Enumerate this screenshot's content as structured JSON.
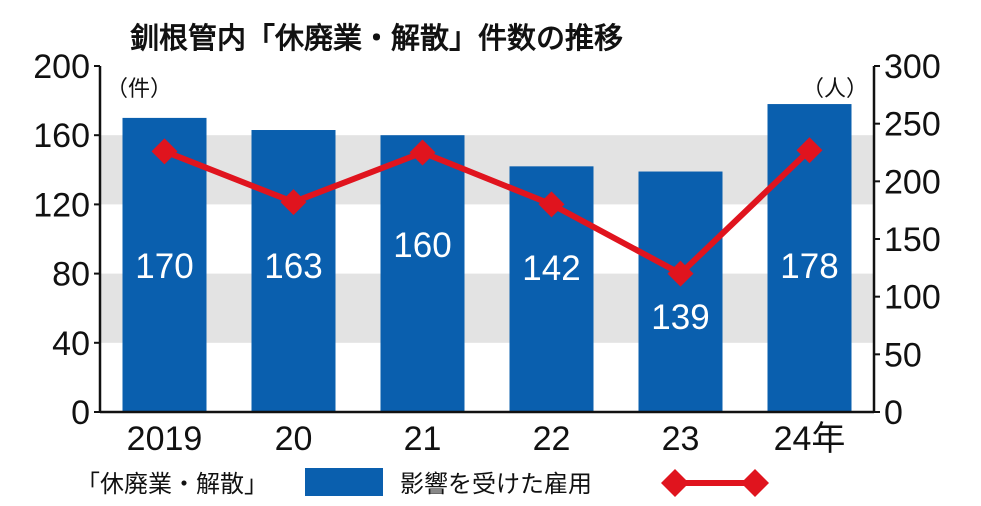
{
  "chart_data": {
    "type": "bar",
    "title": "釧根管内「休廃業・解散」件数の推移",
    "categories": [
      "2019",
      "20",
      "21",
      "22",
      "23",
      "24年"
    ],
    "series": [
      {
        "name": "「休廃業・解散」",
        "type": "bar",
        "axis": "left",
        "unit": "（件）",
        "values": [
          170,
          163,
          160,
          142,
          139,
          178
        ],
        "color": "#0a5fae"
      },
      {
        "name": "影響を受けた雇用",
        "type": "line",
        "axis": "right",
        "unit": "（人）",
        "values": [
          226,
          182,
          225,
          180,
          120,
          227
        ],
        "color": "#e0141e"
      }
    ],
    "y_left": {
      "min": 0,
      "max": 200,
      "ticks": [
        "0",
        "40",
        "80",
        "120",
        "160",
        "200"
      ]
    },
    "y_right": {
      "min": 0,
      "max": 300,
      "ticks": [
        "0",
        "50",
        "100",
        "150",
        "200",
        "250",
        "300"
      ]
    },
    "grid": "alternating horizontal bands",
    "legend": "bottom",
    "band_color": "#e3e3e3"
  }
}
